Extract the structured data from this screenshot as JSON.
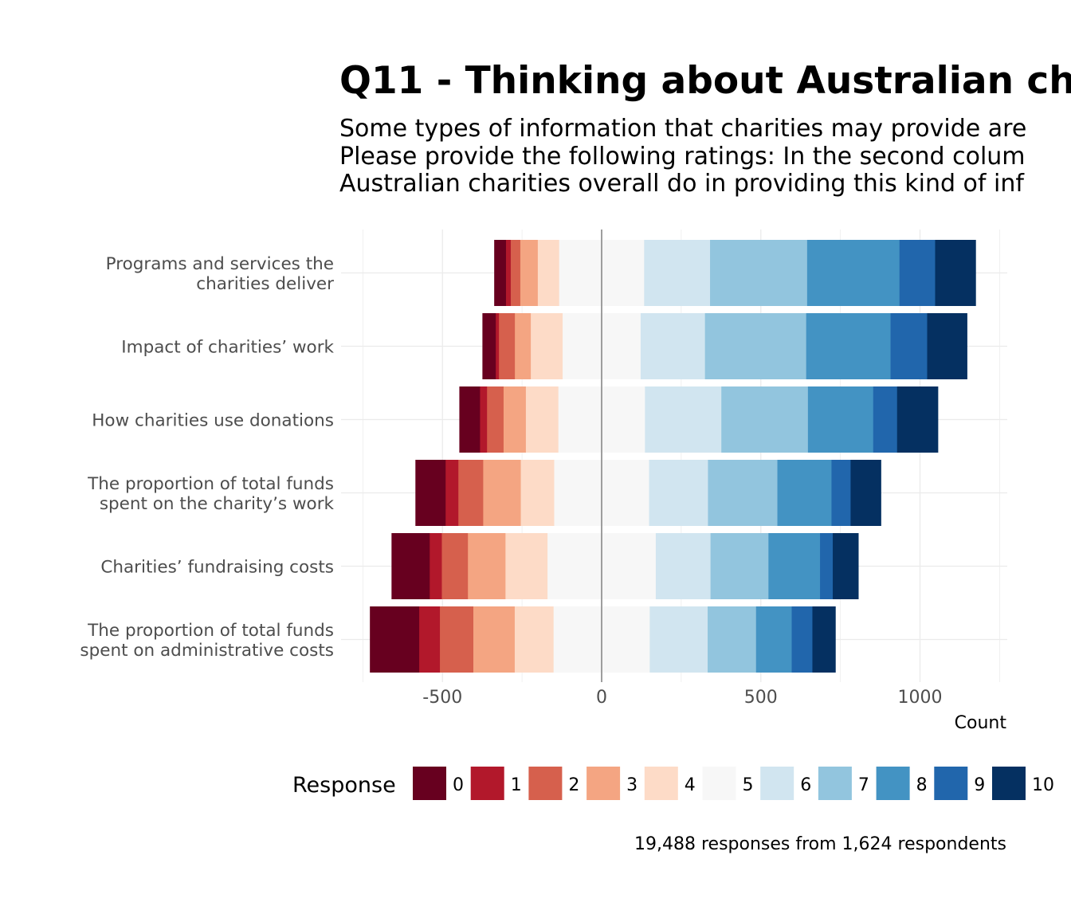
{
  "chart_data": {
    "type": "bar",
    "orientation": "horizontal-diverging-stacked",
    "title": "Q11 - Thinking about Australian ch",
    "subtitle": [
      "Some types of information that charities may provide are",
      "Please provide the following ratings: In the second colum",
      "Australian charities overall do in providing this kind of inf"
    ],
    "xlabel": "Count",
    "xlim": [
      -730,
      1280
    ],
    "xticks": [
      -500,
      0,
      500,
      1000
    ],
    "xtick_labels": [
      "-500",
      "0",
      "500",
      "1000"
    ],
    "categories": [
      [
        "Programs and services the",
        "charities deliver"
      ],
      [
        "Impact of charities’ work"
      ],
      [
        "How charities use donations"
      ],
      [
        "The proportion of total funds",
        "spent on the charity’s work"
      ],
      [
        "Charities’ fundraising costs"
      ],
      [
        "The proportion of total funds",
        "spent on administrative costs"
      ]
    ],
    "legend_title": "Response",
    "legend_position": "bottom",
    "responses": [
      "0",
      "1",
      "2",
      "3",
      "4",
      "5",
      "6",
      "7",
      "8",
      "9",
      "10"
    ],
    "colors": [
      "#67001f",
      "#b2182b",
      "#d6604d",
      "#f4a582",
      "#fddbc7",
      "#f7f7f7",
      "#d1e5f0",
      "#92c5de",
      "#4393c3",
      "#2166ac",
      "#053061"
    ],
    "values": [
      [
        37,
        15,
        30,
        55,
        67,
        267,
        207,
        305,
        290,
        112,
        127
      ],
      [
        42,
        10,
        50,
        50,
        100,
        245,
        202,
        318,
        265,
        115,
        125
      ],
      [
        65,
        22,
        52,
        70,
        102,
        272,
        240,
        272,
        205,
        75,
        128
      ],
      [
        95,
        40,
        78,
        118,
        105,
        298,
        185,
        218,
        170,
        60,
        95
      ],
      [
        120,
        38,
        82,
        118,
        132,
        340,
        172,
        182,
        162,
        40,
        80
      ],
      [
        155,
        65,
        105,
        130,
        122,
        302,
        182,
        152,
        112,
        65,
        72
      ]
    ],
    "caption": "19,488 responses from 1,624 respondents"
  }
}
